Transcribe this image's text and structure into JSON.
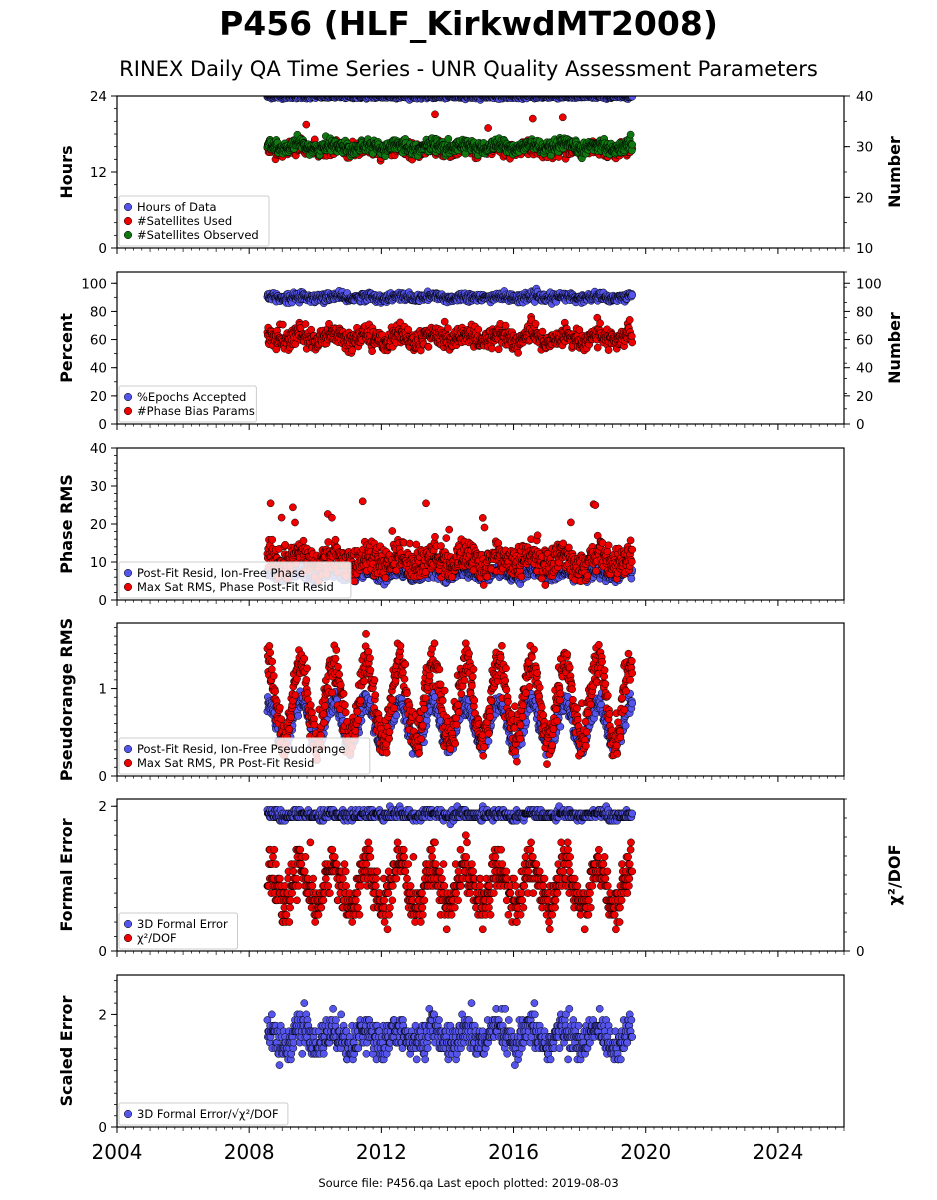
{
  "page": {
    "title": "P456 (HLF_KirkwdMT2008)",
    "subtitle": "RINEX Daily QA Time Series - UNR Quality Assessment Parameters",
    "footer": "Source file: P456.qa Last epoch plotted: 2019-08-03"
  },
  "colors": {
    "blue": "#5555ee",
    "red": "#ee0000",
    "green": "#117711",
    "frame": "#000000"
  },
  "chart_data": [
    {
      "type": "scatter",
      "id": "hours",
      "ylabel": "Hours",
      "ylim": [
        0,
        24
      ],
      "yticks": [
        0,
        12,
        24
      ],
      "yminor": 2,
      "right_axis": {
        "label": "Number",
        "ylim": [
          10,
          40
        ],
        "ticks": [
          10,
          20,
          30,
          40
        ]
      },
      "legend": "lower-left",
      "series": [
        {
          "name": "Hours of Data",
          "color": "blue",
          "axis": "left",
          "base": 23.9,
          "noise": 0.15,
          "seasonal": 0,
          "spikes": 0.0,
          "spike_size": 0
        },
        {
          "name": "#Satellites Used",
          "color": "red",
          "axis": "right",
          "base": 29.5,
          "noise": 0.7,
          "seasonal": 0.3,
          "spikes": 0.003,
          "spike_size": 7
        },
        {
          "name": "#Satellites Observed",
          "color": "green",
          "axis": "right",
          "base": 30.0,
          "noise": 0.6,
          "seasonal": 0.5,
          "spikes": 0.0,
          "spike_size": 0
        }
      ]
    },
    {
      "type": "scatter",
      "id": "percent",
      "ylabel": "Percent",
      "ylim": [
        0,
        108
      ],
      "yticks": [
        0,
        20,
        40,
        60,
        80,
        100
      ],
      "yminor": 10,
      "right_axis": {
        "label": "Number",
        "ylim": [
          0,
          108
        ],
        "ticks": [
          0,
          20,
          40,
          60,
          80,
          100
        ]
      },
      "legend": "lower-left",
      "series": [
        {
          "name": "%Epochs Accepted",
          "color": "blue",
          "axis": "left",
          "base": 90,
          "noise": 1.5,
          "seasonal": 0.8,
          "spikes": 0.004,
          "spike_size": -5
        },
        {
          "name": "#Phase Bias Params",
          "color": "red",
          "axis": "right",
          "base": 61,
          "noise": 3.5,
          "seasonal": 3,
          "spikes": 0.01,
          "spike_size": 12
        }
      ]
    },
    {
      "type": "scatter",
      "id": "phase",
      "ylabel": "Phase RMS",
      "ylim": [
        0,
        40
      ],
      "yticks": [
        0,
        10,
        20,
        30,
        40
      ],
      "yminor": 2,
      "legend": "lower-left",
      "series": [
        {
          "name": "Post-Fit Resid, Ion-Free Phase",
          "color": "blue",
          "axis": "left",
          "base": 6.8,
          "noise": 0.7,
          "seasonal": 0.8,
          "spikes": 0.0,
          "spike_size": 0
        },
        {
          "name": "Max Sat RMS, Phase Post-Fit Resid",
          "color": "red",
          "axis": "left",
          "base": 10.5,
          "noise": 2.0,
          "seasonal": 1.5,
          "spikes": 0.03,
          "spike_size": 14
        }
      ]
    },
    {
      "type": "scatter",
      "id": "pseudo",
      "ylabel": "Pseudorange RMS",
      "ylim": [
        0,
        1.75
      ],
      "yticks": [
        0,
        1
      ],
      "yminor": 0.1,
      "legend": "lower-left",
      "series": [
        {
          "name": "Post-Fit Resid, Ion-Free Pseudorange",
          "color": "blue",
          "axis": "left",
          "base": 0.6,
          "noise": 0.06,
          "seasonal": 0.25,
          "spikes": 0.0,
          "spike_size": 0
        },
        {
          "name": "Max Sat RMS, PR Post-Fit Resid",
          "color": "red",
          "axis": "left",
          "base": 0.85,
          "noise": 0.12,
          "seasonal": 0.45,
          "spikes": 0.0,
          "spike_size": 0
        }
      ]
    },
    {
      "type": "scatter",
      "id": "formal",
      "ylabel": "Formal Error",
      "ylim": [
        0,
        2.1
      ],
      "yticks": [
        0,
        2
      ],
      "yminor": 0.2,
      "right_axis": {
        "label": "χ²/DOF",
        "ylim": [
          0,
          2.1
        ],
        "ticks": [
          0
        ]
      },
      "legend": "lower-left",
      "series": [
        {
          "name": "3D Formal Error",
          "color": "blue",
          "axis": "left",
          "base": 1.88,
          "noise": 0.03,
          "seasonal": 0.02,
          "spikes": 0.004,
          "spike_size": 0.15,
          "step": 0.05
        },
        {
          "name": "χ²/DOF",
          "color": "red",
          "axis": "right",
          "base": 0.9,
          "noise": 0.15,
          "seasonal": 0.28,
          "spikes": 0.01,
          "spike_size": 0.7,
          "step": 0.1
        }
      ]
    },
    {
      "type": "scatter",
      "id": "scaled",
      "ylabel": "Scaled Error",
      "ylim": [
        0,
        2.7
      ],
      "yticks": [
        0,
        2
      ],
      "yminor": 0.2,
      "legend": "lower-left",
      "series": [
        {
          "name": "3D Formal Error/√χ²/DOF",
          "color": "blue",
          "axis": "left",
          "base": 1.6,
          "noise": 0.15,
          "seasonal": 0.15,
          "spikes": 0.01,
          "spike_size": 0.6,
          "step": 0.1
        }
      ]
    }
  ],
  "x_axis": {
    "xlim": [
      2004,
      2026
    ],
    "ticks": [
      "2004",
      "2008",
      "2012",
      "2016",
      "2020",
      "2024"
    ],
    "data_start": 2008.55,
    "data_end": 2019.59
  }
}
